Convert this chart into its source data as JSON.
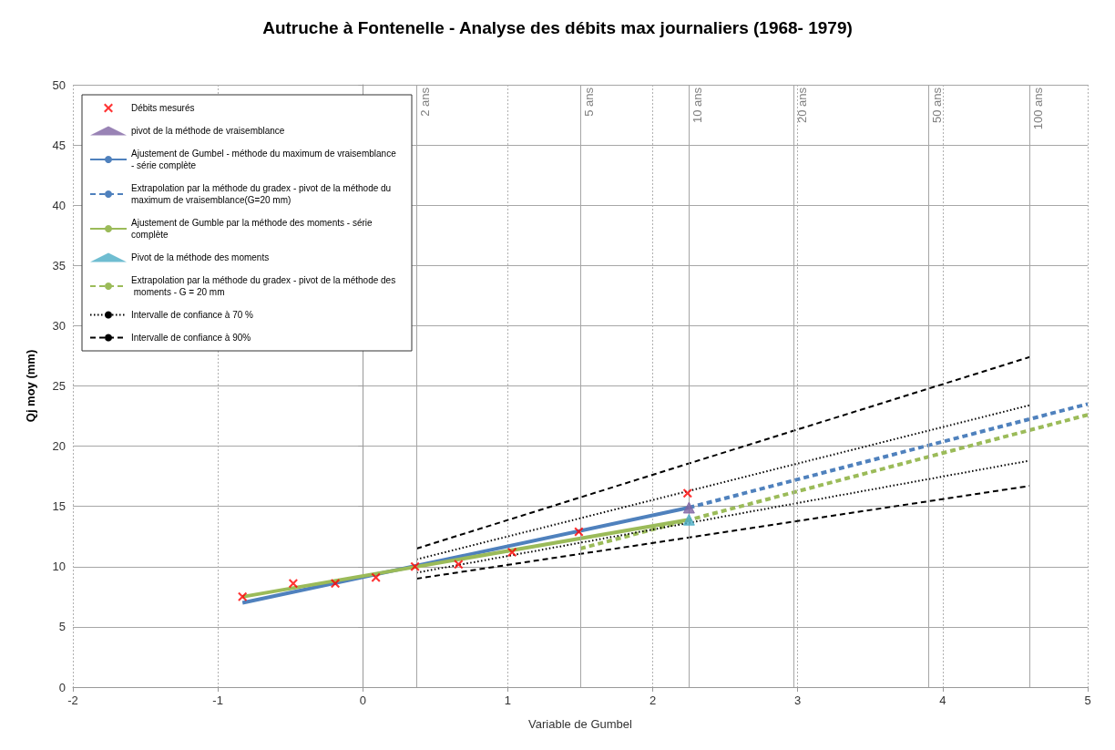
{
  "chart_data": {
    "type": "line",
    "title": "Autruche à Fontenelle - Analyse des débits max journaliers (1968- 1979)",
    "xlabel": "Variable de Gumbel",
    "ylabel": "Qj moy (mm)",
    "xlim": [
      -2,
      5
    ],
    "xticks": [
      -2,
      -1,
      0,
      1,
      2,
      3,
      4,
      5
    ],
    "ylim": [
      0,
      50
    ],
    "yticks": [
      0,
      5,
      10,
      15,
      20,
      25,
      30,
      35,
      40,
      45,
      50
    ],
    "grid": true,
    "legend": "top left",
    "series": [
      {
        "name": "Débits mesurés",
        "type": "scatter",
        "marker": "cross",
        "color": "#ff0000",
        "x": [
          -0.83,
          -0.48,
          -0.19,
          0.09,
          0.36,
          0.66,
          1.03,
          1.49,
          2.24
        ],
        "values": [
          7.5,
          8.6,
          8.6,
          9.1,
          10.0,
          10.2,
          11.2,
          12.9,
          16.1
        ]
      },
      {
        "name": "pivot de la méthode de vraisemblance",
        "type": "scatter",
        "marker": "triangle",
        "color": "#8064a2",
        "x": [
          2.25
        ],
        "values": [
          14.9
        ]
      },
      {
        "name": "Ajustement de Gumbel - méthode du maximum de vraisemblance - série complète",
        "type": "line",
        "line_style": "solid",
        "color": "#4f81bd",
        "x": [
          -0.83,
          2.25
        ],
        "values": [
          7.0,
          14.9
        ]
      },
      {
        "name": "Extrapolation par la méthode du gradex - pivot de la méthode du maximum de vraisemblance(G=20 mm)",
        "type": "line",
        "line_style": "dashed",
        "color": "#4f81bd",
        "x": [
          2.25,
          5
        ],
        "values": [
          14.9,
          23.5
        ]
      },
      {
        "name": "Ajustement de Gumble par la méthode des moments - série complète",
        "type": "line",
        "line_style": "solid",
        "color": "#9bbb59",
        "x": [
          -0.83,
          2.25
        ],
        "values": [
          7.5,
          13.9
        ]
      },
      {
        "name": "Pivot de la méthode des moments",
        "type": "scatter",
        "marker": "triangle",
        "color": "#4bacc6",
        "x": [
          2.25
        ],
        "values": [
          13.9
        ]
      },
      {
        "name": "Extrapolation par la méthode du gradex - pivot de la méthode des moments - G = 20 mm",
        "type": "line",
        "line_style": "dashed",
        "color": "#9bbb59",
        "x": [
          1.5,
          5
        ],
        "values": [
          11.5,
          22.6
        ]
      },
      {
        "name": "Intervalle de confiance à 70 %",
        "type": "line",
        "line_style": "dotted",
        "color": "#000000",
        "x": [
          0.37,
          4.6
        ],
        "values": [
          10.6,
          23.4
        ]
      },
      {
        "name": null,
        "type": "line",
        "line_style": "dotted",
        "color": "#000000",
        "x": [
          0.37,
          4.6
        ],
        "values": [
          9.5,
          18.8
        ]
      },
      {
        "name": "Intervalle de confiance à 90%",
        "type": "line",
        "line_style": "dashed",
        "color": "#000000",
        "x": [
          0.37,
          4.6
        ],
        "values": [
          11.5,
          27.4
        ]
      },
      {
        "name": null,
        "type": "line",
        "line_style": "dashed",
        "color": "#000000",
        "x": [
          0.37,
          4.6
        ],
        "values": [
          9.0,
          16.7
        ]
      }
    ],
    "ref_lines": [
      {
        "axis": "x",
        "value": 0.37,
        "label": "2 ans",
        "color": "#a6a6a6"
      },
      {
        "axis": "x",
        "value": 1.5,
        "label": "5 ans",
        "color": "#a6a6a6"
      },
      {
        "axis": "x",
        "value": 2.25,
        "label": "10 ans",
        "color": "#a6a6a6"
      },
      {
        "axis": "x",
        "value": 2.97,
        "label": "20 ans",
        "color": "#a6a6a6"
      },
      {
        "axis": "x",
        "value": 3.9,
        "label": "50 ans",
        "color": "#a6a6a6"
      },
      {
        "axis": "x",
        "value": 4.6,
        "label": "100 ans",
        "color": "#a6a6a6"
      }
    ]
  }
}
